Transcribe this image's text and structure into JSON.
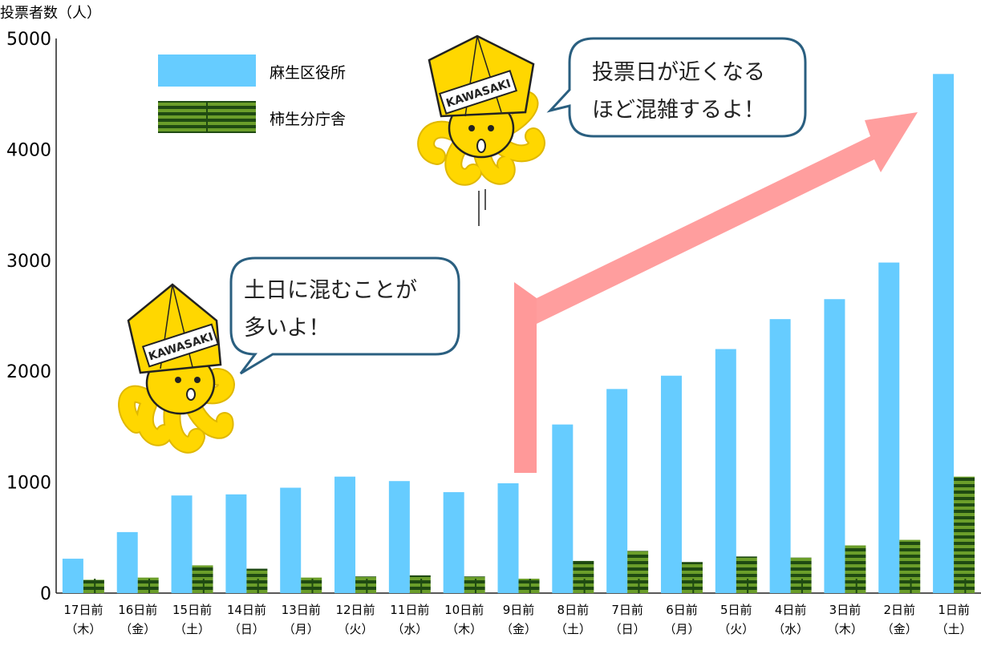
{
  "chart_data": {
    "type": "bar",
    "ylabel": "投票者数（人）",
    "ylim": [
      0,
      5000
    ],
    "yticks": [
      0,
      1000,
      2000,
      3000,
      4000,
      5000
    ],
    "categories": [
      {
        "day": "17日前",
        "weekday": "（木）"
      },
      {
        "day": "16日前",
        "weekday": "（金）"
      },
      {
        "day": "15日前",
        "weekday": "（土）"
      },
      {
        "day": "14日前",
        "weekday": "（日）"
      },
      {
        "day": "13日前",
        "weekday": "（月）"
      },
      {
        "day": "12日前",
        "weekday": "（火）"
      },
      {
        "day": "11日前",
        "weekday": "（水）"
      },
      {
        "day": "10日前",
        "weekday": "（木）"
      },
      {
        "day": "9日前",
        "weekday": "（金）"
      },
      {
        "day": "8日前",
        "weekday": "（土）"
      },
      {
        "day": "7日前",
        "weekday": "（日）"
      },
      {
        "day": "6日前",
        "weekday": "（月）"
      },
      {
        "day": "5日前",
        "weekday": "（火）"
      },
      {
        "day": "4日前",
        "weekday": "（水）"
      },
      {
        "day": "3日前",
        "weekday": "（木）"
      },
      {
        "day": "2日前",
        "weekday": "（金）"
      },
      {
        "day": "1日前",
        "weekday": "（土）"
      }
    ],
    "series": [
      {
        "name": "麻生区役所",
        "color": "#66ccff",
        "values": [
          310,
          550,
          880,
          890,
          950,
          1050,
          1010,
          910,
          990,
          1520,
          1840,
          1960,
          2200,
          2470,
          2650,
          2980,
          4680
        ]
      },
      {
        "name": "柿生分庁舎",
        "color": "#6b9e2a",
        "stripe": "#1f4a12",
        "values": [
          120,
          140,
          250,
          220,
          140,
          150,
          160,
          150,
          130,
          290,
          380,
          280,
          330,
          320,
          430,
          480,
          1050
        ]
      }
    ]
  },
  "callouts": {
    "left": {
      "line1": "土日に混むことが",
      "line2": "多いよ！"
    },
    "right": {
      "line1": "投票日が近くなる",
      "line2": "ほど混雑するよ！"
    }
  },
  "mascot": {
    "sash_text": "KAWASAKI"
  },
  "colors": {
    "arrow": "#ff9999",
    "bubble_border": "#2a5f80",
    "mascot_yellow": "#ffd700"
  }
}
